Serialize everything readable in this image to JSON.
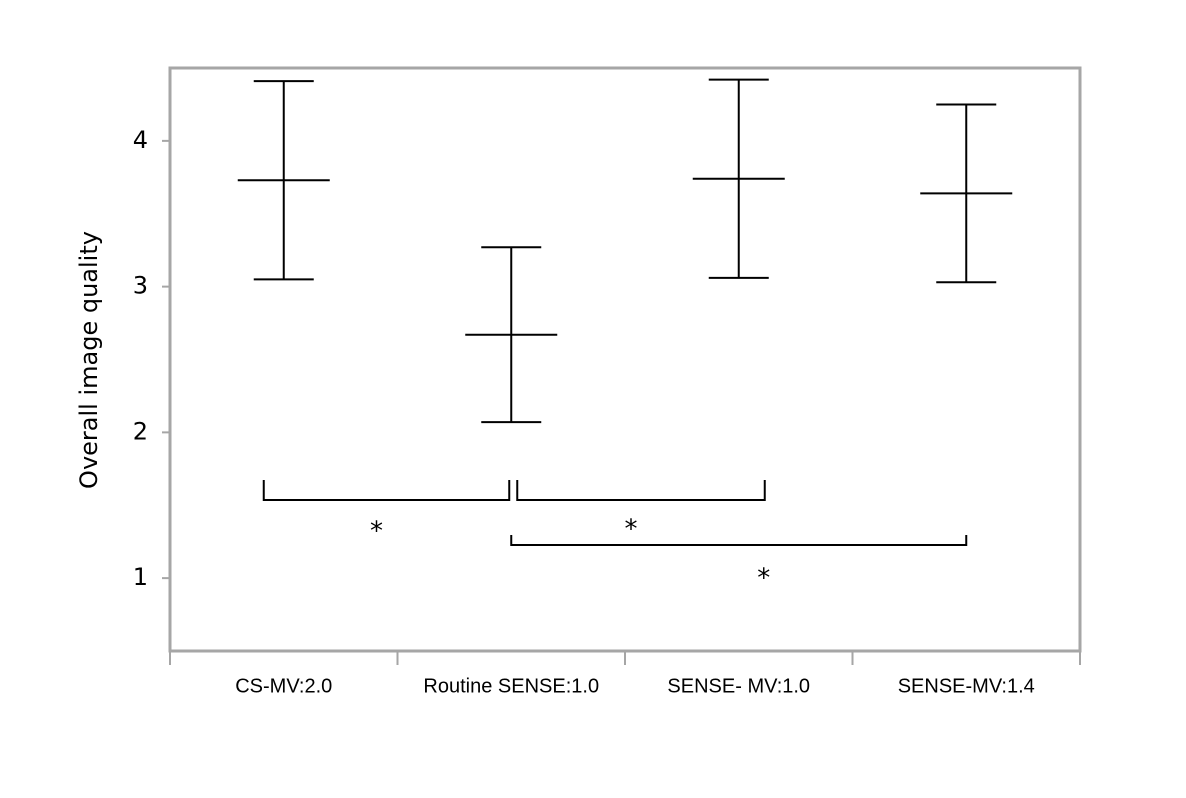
{
  "chart_data": {
    "type": "errorbar",
    "y_label": "Overall image quality",
    "categories": [
      "CS-MV:2.0",
      "Routine SENSE:1.0",
      "SENSE- MV:1.0",
      "SENSE-MV:1.4"
    ],
    "values": [
      3.73,
      2.67,
      3.74,
      3.64
    ],
    "errors": [
      0.68,
      0.6,
      0.68,
      0.61
    ],
    "color": "#000000",
    "ylim": [
      0.5,
      4.5
    ],
    "yticks": [
      1,
      2,
      3,
      4
    ],
    "significance": [
      {
        "from": 0,
        "to": 1,
        "label": "*"
      },
      {
        "from": 1,
        "to": 2,
        "label": "*"
      },
      {
        "from": 1,
        "to": 3,
        "label": "*"
      }
    ]
  }
}
